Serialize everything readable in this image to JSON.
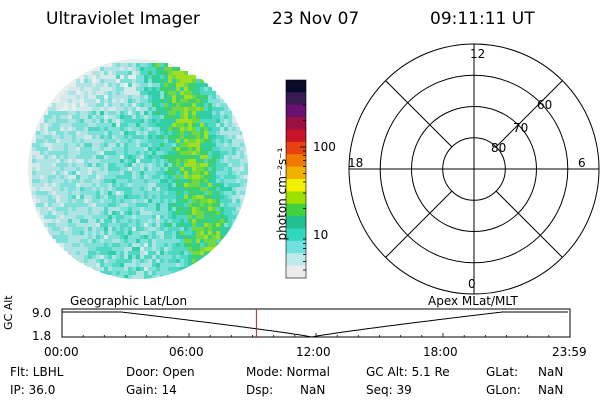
{
  "header": {
    "instrument": "Ultraviolet Imager",
    "date": "23 Nov 07",
    "time": "09:11:11 UT"
  },
  "colorbar": {
    "unit_label": "photon cm⁻²s⁻¹",
    "ticks": [
      {
        "label": "100",
        "value": 100
      },
      {
        "label": "10",
        "value": 10
      }
    ],
    "colors": [
      "#0a0a2a",
      "#3a1a55",
      "#6a1070",
      "#9a1040",
      "#c81428",
      "#e84010",
      "#f07a00",
      "#f0b000",
      "#f0f000",
      "#a0e000",
      "#40d040",
      "#20c090",
      "#30d8c0",
      "#70e0e0",
      "#c0eaea",
      "#ececec"
    ]
  },
  "polar_grid": {
    "mlt_labels": [
      {
        "label": "12",
        "mlt": 12
      },
      {
        "label": "18",
        "mlt": 18
      },
      {
        "label": "6",
        "mlt": 6
      },
      {
        "label": "0",
        "mlt": 0
      }
    ],
    "lat_labels": [
      {
        "label": "60",
        "mlat": 60
      },
      {
        "label": "70",
        "mlat": 70
      },
      {
        "label": "80",
        "mlat": 80
      }
    ]
  },
  "timeline": {
    "left_title": "Geographic Lat/Lon",
    "right_title": "Apex MLat/MLT",
    "yaxis_label": "GC Alt",
    "y_ticks": [
      "9.0",
      "1.8"
    ],
    "x_ticks": [
      "00:00",
      "06:00",
      "12:00",
      "18:00",
      "23:59"
    ],
    "marker_time_hours": 9.186,
    "marker_color": "#d02020"
  },
  "status": {
    "flt": "Flt: LBHL",
    "ip": "IP: 36.0",
    "door": "Door: Open",
    "gain": "Gain: 14",
    "mode": "Mode: Normal",
    "dsp_label": "Dsp:",
    "dsp_value": "NaN",
    "gc_alt": "GC Alt: 5.1 Re",
    "seq": "Seq: 39",
    "glat_label": "GLat:",
    "glat_value": "NaN",
    "glon_label": "GLon:",
    "glon_value": "NaN"
  }
}
